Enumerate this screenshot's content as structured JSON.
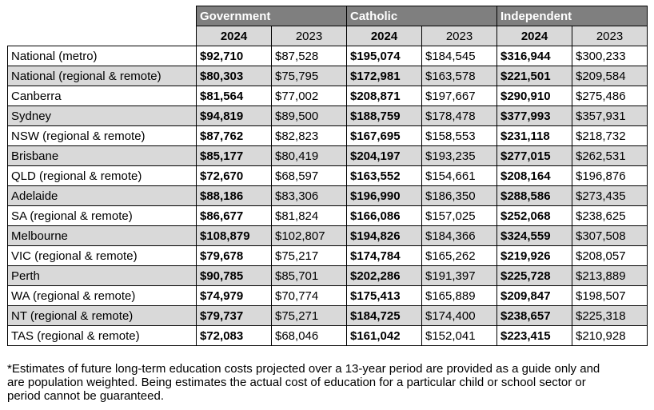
{
  "groups": [
    "Government",
    "Catholic",
    "Independent"
  ],
  "years": [
    "2024",
    "2023"
  ],
  "rows": [
    {
      "region": "National (metro)",
      "values": [
        "$92,710",
        "$87,528",
        "$195,074",
        "$184,545",
        "$316,944",
        "$300,233"
      ]
    },
    {
      "region": "National (regional & remote)",
      "values": [
        "$80,303",
        "$75,795",
        "$172,981",
        "$163,578",
        "$221,501",
        "$209,584"
      ]
    },
    {
      "region": "Canberra",
      "values": [
        "$81,564",
        "$77,002",
        "$208,871",
        "$197,667",
        "$290,910",
        "$275,486"
      ]
    },
    {
      "region": "Sydney",
      "values": [
        "$94,819",
        "$89,500",
        "$188,759",
        "$178,478",
        "$377,993",
        "$357,931"
      ]
    },
    {
      "region": "NSW (regional & remote)",
      "values": [
        "$87,762",
        "$82,823",
        "$167,695",
        "$158,553",
        "$231,118",
        "$218,732"
      ]
    },
    {
      "region": "Brisbane",
      "values": [
        "$85,177",
        "$80,419",
        "$204,197",
        "$193,235",
        "$277,015",
        "$262,531"
      ]
    },
    {
      "region": "QLD (regional & remote)",
      "values": [
        "$72,670",
        "$68,597",
        "$163,552",
        "$154,661",
        "$208,164",
        "$196,876"
      ]
    },
    {
      "region": "Adelaide",
      "values": [
        "$88,186",
        "$83,306",
        "$196,990",
        "$186,350",
        "$288,586",
        "$273,435"
      ]
    },
    {
      "region": "SA (regional & remote)",
      "values": [
        "$86,677",
        "$81,824",
        "$166,086",
        "$157,025",
        "$252,068",
        "$238,625"
      ]
    },
    {
      "region": "Melbourne",
      "values": [
        "$108,879",
        "$102,807",
        "$194,826",
        "$184,366",
        "$324,559",
        "$307,508"
      ]
    },
    {
      "region": "VIC (regional & remote)",
      "values": [
        "$79,678",
        "$75,217",
        "$174,784",
        "$165,262",
        "$219,926",
        "$208,057"
      ]
    },
    {
      "region": "Perth",
      "values": [
        "$90,785",
        "$85,701",
        "$202,286",
        "$191,397",
        "$225,728",
        "$213,889"
      ]
    },
    {
      "region": "WA (regional & remote)",
      "values": [
        "$74,979",
        "$70,774",
        "$175,413",
        "$165,889",
        "$209,847",
        "$198,507"
      ]
    },
    {
      "region": "NT (regional & remote)",
      "values": [
        "$79,737",
        "$75,271",
        "$184,725",
        "$174,400",
        "$238,657",
        "$225,318"
      ]
    },
    {
      "region": "TAS (regional & remote)",
      "values": [
        "$72,083",
        "$68,046",
        "$161,042",
        "$152,041",
        "$223,415",
        "$210,928"
      ]
    }
  ],
  "footnote": "*Estimates of future long-term education costs projected over a 13-year period are provided as a guide only and are population weighted. Being estimates the actual cost of education for a particular child or school sector or period cannot be guaranteed."
}
